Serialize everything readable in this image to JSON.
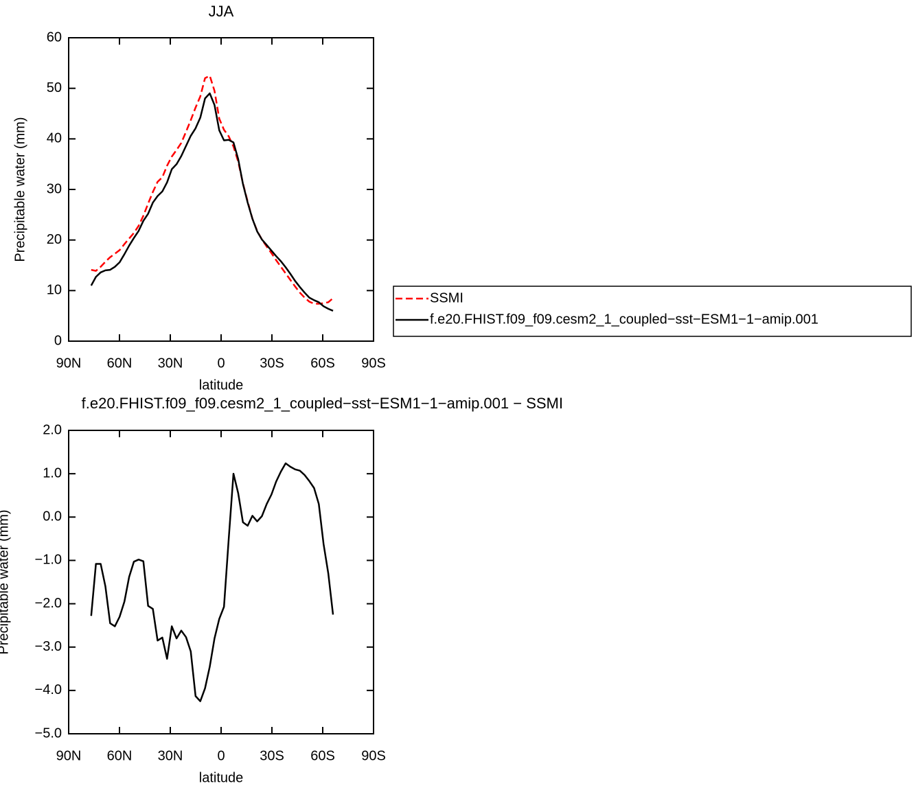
{
  "chart_data": [
    {
      "type": "line",
      "title": "JJA",
      "xlabel": "latitude",
      "ylabel": "Precipitable water (mm)",
      "xlim": [
        90,
        -90
      ],
      "xticks": [
        {
          "value": 90,
          "label": "90N"
        },
        {
          "value": 60,
          "label": "60N"
        },
        {
          "value": 30,
          "label": "30N"
        },
        0,
        {
          "value": -30,
          "label": "30S"
        },
        {
          "value": -60,
          "label": "60S"
        },
        {
          "value": -90,
          "label": "90S"
        }
      ],
      "ylim": [
        0,
        60
      ],
      "yticks": [
        0,
        10,
        20,
        30,
        40,
        50,
        60
      ],
      "x": [
        76.7,
        73.9,
        71.1,
        68.3,
        65.5,
        62.7,
        59.9,
        57.1,
        54.3,
        51.5,
        48.7,
        45.9,
        43.1,
        40.3,
        37.5,
        34.7,
        31.9,
        29.1,
        26.3,
        23.5,
        20.7,
        17.9,
        15.1,
        12.3,
        9.5,
        6.7,
        3.9,
        1.1,
        -1.7,
        -4.5,
        -7.3,
        -10.1,
        -12.9,
        -15.7,
        -18.5,
        -21.3,
        -24.1,
        -26.9,
        -29.7,
        -32.5,
        -35.3,
        -38.1,
        -40.9,
        -43.7,
        -46.5,
        -49.3,
        -52.1,
        -54.9,
        -57.7,
        -60.5,
        -63.3,
        -66.1
      ],
      "series": [
        {
          "name": "SSMI",
          "color": "#ff0000",
          "dash": "dashed",
          "values": [
            14.1,
            13.9,
            14.7,
            15.7,
            16.6,
            17.3,
            18.0,
            19.2,
            20.3,
            21.4,
            22.8,
            24.8,
            27.2,
            29.5,
            31.5,
            32.4,
            34.7,
            36.5,
            37.8,
            39.2,
            41.4,
            43.7,
            46.2,
            48.4,
            52.0,
            52.5,
            49.5,
            44.0,
            41.8,
            40.5,
            38.5,
            35.5,
            31.2,
            27.6,
            24.2,
            21.8,
            20.1,
            18.7,
            17.4,
            16.0,
            14.7,
            13.4,
            12.1,
            10.8,
            9.6,
            8.6,
            7.8,
            7.4,
            7.4,
            7.5,
            7.7,
            8.5
          ]
        },
        {
          "name": "f.e20.FHIST.f09_f09.cesm2_1_coupled−sst−ESM1−1−amip.001",
          "color": "#000000",
          "dash": "solid",
          "values": [
            11.0,
            12.7,
            13.6,
            14.0,
            14.1,
            14.7,
            15.6,
            17.2,
            18.9,
            20.4,
            21.8,
            23.8,
            25.2,
            27.4,
            28.7,
            29.6,
            31.4,
            34.0,
            35.0,
            36.6,
            38.6,
            40.6,
            42.1,
            44.2,
            48.0,
            49.0,
            46.7,
            41.7,
            39.7,
            39.8,
            39.3,
            36.0,
            31.1,
            27.4,
            24.2,
            21.7,
            20.1,
            19.0,
            17.9,
            16.8,
            15.8,
            14.6,
            13.3,
            11.9,
            10.7,
            9.6,
            8.6,
            8.1,
            7.7,
            6.9,
            6.4,
            6.0
          ]
        }
      ]
    },
    {
      "type": "line",
      "title": "f.e20.FHIST.f09_f09.cesm2_1_coupled−sst−ESM1−1−amip.001  −  SSMI",
      "xlabel": "latitude",
      "ylabel": "Precipitable water (mm)",
      "xlim": [
        90,
        -90
      ],
      "xticks": [
        {
          "value": 90,
          "label": "90N"
        },
        {
          "value": 60,
          "label": "60N"
        },
        {
          "value": 30,
          "label": "30N"
        },
        0,
        {
          "value": -30,
          "label": "30S"
        },
        {
          "value": -60,
          "label": "60S"
        },
        {
          "value": -90,
          "label": "90S"
        }
      ],
      "ylim": [
        -5,
        2
      ],
      "yticks": [
        {
          "value": -5,
          "label": "−5.0"
        },
        {
          "value": -4,
          "label": "−4.0"
        },
        {
          "value": -3,
          "label": "−3.0"
        },
        {
          "value": -2,
          "label": "−2.0"
        },
        {
          "value": -1,
          "label": "−1.0"
        },
        {
          "value": 0,
          "label": "0.0"
        },
        {
          "value": 1,
          "label": "1.0"
        },
        {
          "value": 2,
          "label": "2.0"
        }
      ],
      "x": [
        76.7,
        73.9,
        71.1,
        68.3,
        65.5,
        62.7,
        59.9,
        57.1,
        54.3,
        51.5,
        48.7,
        45.9,
        43.1,
        40.3,
        37.5,
        34.7,
        31.9,
        29.1,
        26.3,
        23.5,
        20.7,
        17.9,
        15.1,
        12.3,
        9.5,
        6.7,
        3.9,
        1.1,
        -1.7,
        -4.5,
        -7.3,
        -10.1,
        -12.9,
        -15.7,
        -18.5,
        -21.3,
        -24.1,
        -26.9,
        -29.7,
        -32.5,
        -35.3,
        -38.1,
        -40.9,
        -43.7,
        -46.5,
        -49.3,
        -52.1,
        -54.9,
        -57.7,
        -60.5,
        -63.3,
        -66.1
      ],
      "series": [
        {
          "color": "#000000",
          "dash": "solid",
          "values": [
            -2.28,
            -1.08,
            -1.08,
            -1.6,
            -2.45,
            -2.52,
            -2.3,
            -1.95,
            -1.38,
            -1.03,
            -0.98,
            -1.02,
            -2.05,
            -2.12,
            -2.85,
            -2.78,
            -3.27,
            -2.52,
            -2.8,
            -2.62,
            -2.77,
            -3.1,
            -4.13,
            -4.25,
            -3.95,
            -3.45,
            -2.8,
            -2.35,
            -2.07,
            -0.5,
            1.0,
            0.55,
            -0.12,
            -0.2,
            0.03,
            -0.1,
            0.02,
            0.3,
            0.52,
            0.82,
            1.05,
            1.24,
            1.16,
            1.1,
            1.07,
            0.97,
            0.83,
            0.67,
            0.3,
            -0.62,
            -1.3,
            -2.25
          ]
        }
      ]
    }
  ]
}
